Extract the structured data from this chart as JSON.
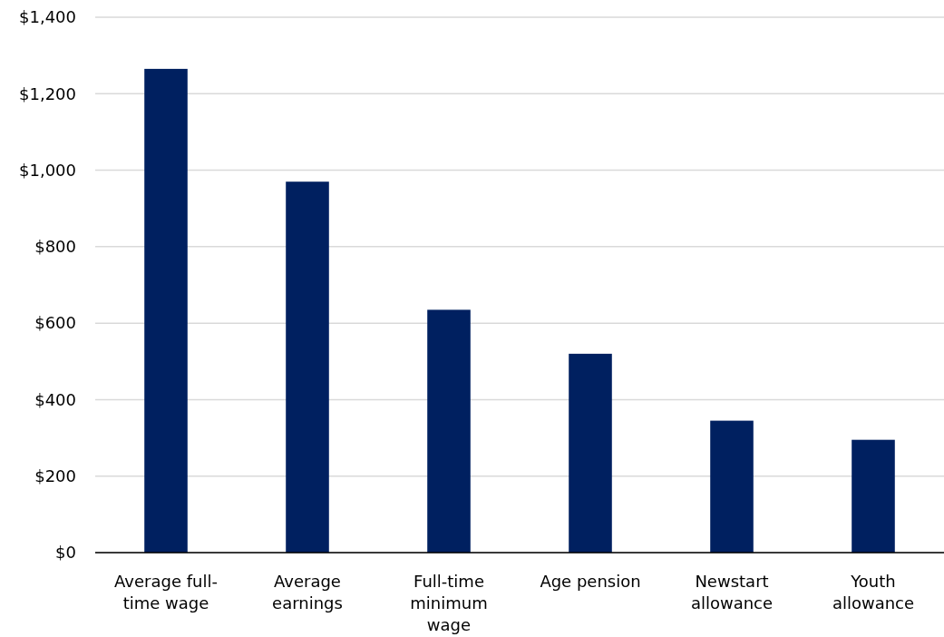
{
  "chart_data": {
    "type": "bar",
    "categories": [
      "Average full-time wage",
      "Average earnings",
      "Full-time minimum wage",
      "Age pension",
      "Newstart allowance",
      "Youth allowance"
    ],
    "values": [
      1265,
      970,
      635,
      520,
      345,
      295
    ],
    "color": "#002060",
    "ylim": [
      0,
      1400
    ],
    "yticks": [
      {
        "value": 0,
        "label": "$0"
      },
      {
        "value": 200,
        "label": "$200"
      },
      {
        "value": 400,
        "label": "$400"
      },
      {
        "value": 600,
        "label": "$600"
      },
      {
        "value": 800,
        "label": "$800"
      },
      {
        "value": 1000,
        "label": "$1,000"
      },
      {
        "value": 1200,
        "label": "$1,200"
      },
      {
        "value": 1400,
        "label": "$1,400"
      }
    ],
    "grid": "y"
  }
}
